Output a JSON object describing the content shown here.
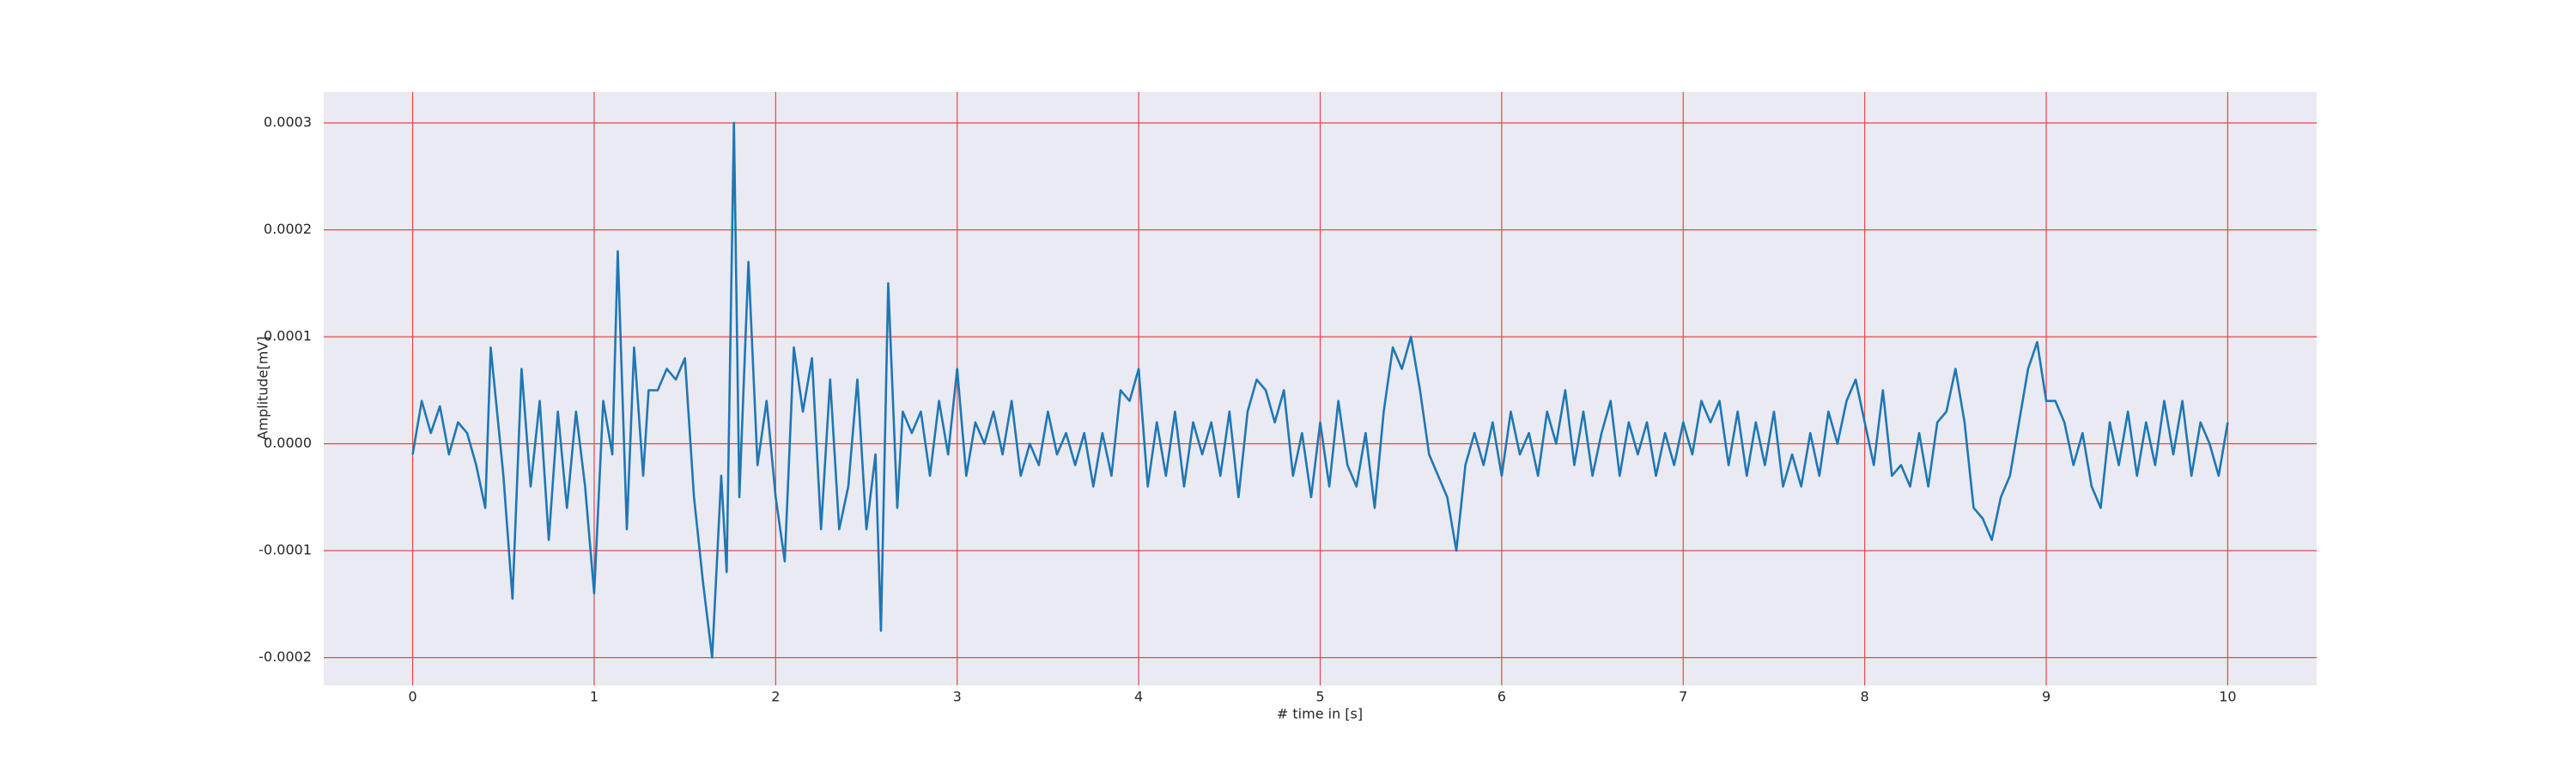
{
  "chart_data": {
    "type": "line",
    "xlabel": "# time in [s]",
    "ylabel": "Amplitude[mV]",
    "xlim": [
      -0.49,
      10.49
    ],
    "ylim": [
      -0.000226,
      0.000329
    ],
    "xticks": [
      0,
      1,
      2,
      3,
      4,
      5,
      6,
      7,
      8,
      9,
      10
    ],
    "yticks": [
      -0.0002,
      -0.0001,
      {
        "value": 0,
        "label": "0.0000"
      },
      0.0001,
      0.0002,
      0.0003
    ],
    "grid": true,
    "grid_color": "#e8464a",
    "background": "#eaeaf2",
    "series": [
      {
        "color": "#1f77b4",
        "x": [
          0,
          0.05,
          0.1,
          0.15,
          0.2,
          0.25,
          0.3,
          0.35,
          0.4,
          0.43,
          0.5,
          0.55,
          0.6,
          0.65,
          0.7,
          0.75,
          0.8,
          0.85,
          0.9,
          0.95,
          1.0,
          1.05,
          1.1,
          1.13,
          1.18,
          1.22,
          1.27,
          1.3,
          1.35,
          1.4,
          1.45,
          1.5,
          1.55,
          1.6,
          1.65,
          1.7,
          1.73,
          1.77,
          1.8,
          1.85,
          1.9,
          1.95,
          2.0,
          2.05,
          2.1,
          2.15,
          2.2,
          2.25,
          2.3,
          2.35,
          2.4,
          2.45,
          2.5,
          2.55,
          2.58,
          2.62,
          2.67,
          2.7,
          2.75,
          2.8,
          2.85,
          2.9,
          2.95,
          3.0,
          3.05,
          3.1,
          3.15,
          3.2,
          3.25,
          3.3,
          3.35,
          3.4,
          3.45,
          3.5,
          3.55,
          3.6,
          3.65,
          3.7,
          3.75,
          3.8,
          3.85,
          3.9,
          3.95,
          4.0,
          4.05,
          4.1,
          4.15,
          4.2,
          4.25,
          4.3,
          4.35,
          4.4,
          4.45,
          4.5,
          4.55,
          4.6,
          4.65,
          4.7,
          4.75,
          4.8,
          4.85,
          4.9,
          4.95,
          5.0,
          5.05,
          5.1,
          5.15,
          5.2,
          5.25,
          5.3,
          5.35,
          5.4,
          5.45,
          5.5,
          5.55,
          5.6,
          5.65,
          5.7,
          5.75,
          5.8,
          5.85,
          5.9,
          5.95,
          6.0,
          6.05,
          6.1,
          6.15,
          6.2,
          6.25,
          6.3,
          6.35,
          6.4,
          6.45,
          6.5,
          6.55,
          6.6,
          6.65,
          6.7,
          6.75,
          6.8,
          6.85,
          6.9,
          6.95,
          7.0,
          7.05,
          7.1,
          7.15,
          7.2,
          7.25,
          7.3,
          7.35,
          7.4,
          7.45,
          7.5,
          7.55,
          7.6,
          7.65,
          7.7,
          7.75,
          7.8,
          7.85,
          7.9,
          7.95,
          8.0,
          8.05,
          8.1,
          8.15,
          8.2,
          8.25,
          8.3,
          8.35,
          8.4,
          8.45,
          8.5,
          8.55,
          8.6,
          8.65,
          8.7,
          8.75,
          8.8,
          8.85,
          8.9,
          8.95,
          9.0,
          9.05,
          9.1,
          9.15,
          9.2,
          9.25,
          9.3,
          9.35,
          9.4,
          9.45,
          9.5,
          9.55,
          9.6,
          9.65,
          9.7,
          9.75,
          9.8,
          9.85,
          9.9,
          9.95,
          10.0
        ],
        "values": [
          -1e-05,
          4e-05,
          1e-05,
          3.5e-05,
          -1e-05,
          2e-05,
          1e-05,
          -2e-05,
          -6e-05,
          9e-05,
          -3e-05,
          -0.000145,
          7e-05,
          -4e-05,
          4e-05,
          -9e-05,
          3e-05,
          -6e-05,
          3e-05,
          -4e-05,
          -0.00014,
          4e-05,
          -1e-05,
          0.00018,
          -8e-05,
          9e-05,
          -3e-05,
          5e-05,
          5e-05,
          7e-05,
          6e-05,
          8e-05,
          -5e-05,
          -0.00013,
          -0.0002,
          -3e-05,
          -0.00012,
          0.0003,
          -5e-05,
          0.00017,
          -2e-05,
          4e-05,
          -5e-05,
          -0.00011,
          9e-05,
          3e-05,
          8e-05,
          -8e-05,
          6e-05,
          -8e-05,
          -4e-05,
          6e-05,
          -8e-05,
          -1e-05,
          -0.000175,
          0.00015,
          -6e-05,
          3e-05,
          1e-05,
          3e-05,
          -3e-05,
          4e-05,
          -1e-05,
          7e-05,
          -3e-05,
          2e-05,
          0,
          3e-05,
          -1e-05,
          4e-05,
          -3e-05,
          0,
          -2e-05,
          3e-05,
          -1e-05,
          1e-05,
          -2e-05,
          1e-05,
          -4e-05,
          1e-05,
          -3e-05,
          5e-05,
          4e-05,
          7e-05,
          -4e-05,
          2e-05,
          -3e-05,
          3e-05,
          -4e-05,
          2e-05,
          -1e-05,
          2e-05,
          -3e-05,
          3e-05,
          -5e-05,
          3e-05,
          6e-05,
          5e-05,
          2e-05,
          5e-05,
          -3e-05,
          1e-05,
          -5e-05,
          2e-05,
          -4e-05,
          4e-05,
          -2e-05,
          -4e-05,
          1e-05,
          -6e-05,
          3e-05,
          9e-05,
          7e-05,
          0.0001,
          5e-05,
          -1e-05,
          -3e-05,
          -5e-05,
          -0.0001,
          -2e-05,
          1e-05,
          -2e-05,
          2e-05,
          -3e-05,
          3e-05,
          -1e-05,
          1e-05,
          -3e-05,
          3e-05,
          0,
          5e-05,
          -2e-05,
          3e-05,
          -3e-05,
          1e-05,
          4e-05,
          -3e-05,
          2e-05,
          -1e-05,
          2e-05,
          -3e-05,
          1e-05,
          -2e-05,
          2e-05,
          -1e-05,
          4e-05,
          2e-05,
          4e-05,
          -2e-05,
          3e-05,
          -3e-05,
          2e-05,
          -2e-05,
          3e-05,
          -4e-05,
          -1e-05,
          -4e-05,
          1e-05,
          -3e-05,
          3e-05,
          0,
          4e-05,
          6e-05,
          2e-05,
          -2e-05,
          5e-05,
          -3e-05,
          -2e-05,
          -4e-05,
          1e-05,
          -4e-05,
          2e-05,
          3e-05,
          7e-05,
          2e-05,
          -6e-05,
          -7e-05,
          -9e-05,
          -5e-05,
          -3e-05,
          2e-05,
          7e-05,
          9.5e-05,
          4e-05,
          4e-05,
          2e-05,
          -2e-05,
          1e-05,
          -4e-05,
          -6e-05,
          2e-05,
          -2e-05,
          3e-05,
          -3e-05,
          2e-05,
          -2e-05,
          4e-05,
          -1e-05,
          4e-05,
          -3e-05,
          2e-05,
          0,
          -3e-05,
          2e-05
        ]
      }
    ]
  }
}
